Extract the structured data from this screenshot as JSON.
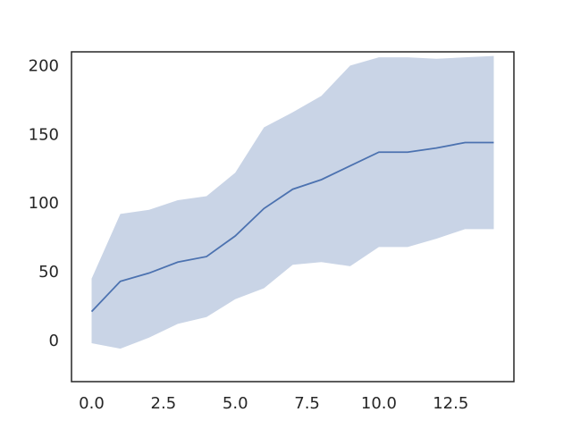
{
  "chart_data": {
    "type": "line",
    "title": "",
    "xlabel": "",
    "ylabel": "",
    "xlim": [
      -0.7,
      14.7
    ],
    "ylim": [
      -30,
      210
    ],
    "x_ticks": [
      0.0,
      2.5,
      5.0,
      7.5,
      10.0,
      12.5
    ],
    "x_tick_labels": [
      "0.0",
      "2.5",
      "5.0",
      "7.5",
      "10.0",
      "12.5"
    ],
    "y_ticks": [
      0,
      50,
      100,
      150,
      200
    ],
    "y_tick_labels": [
      "0",
      "50",
      "100",
      "150",
      "200"
    ],
    "grid": false,
    "series": [
      {
        "x": [
          0,
          1,
          2,
          3,
          4,
          5,
          6,
          7,
          8,
          9,
          10,
          11,
          12,
          13,
          14
        ],
        "values": [
          21,
          43,
          49,
          57,
          61,
          76,
          96,
          110,
          117,
          127,
          137,
          137,
          140,
          144,
          144
        ],
        "lower": [
          -2,
          -6,
          2,
          12,
          17,
          30,
          38,
          55,
          57,
          54,
          68,
          68,
          74,
          81,
          81
        ],
        "upper": [
          45,
          92,
          95,
          102,
          105,
          122,
          155,
          166,
          178,
          200,
          206,
          206,
          205,
          206,
          207
        ],
        "color": "#4c72b0",
        "band_color": "#c9d4e6"
      }
    ]
  }
}
